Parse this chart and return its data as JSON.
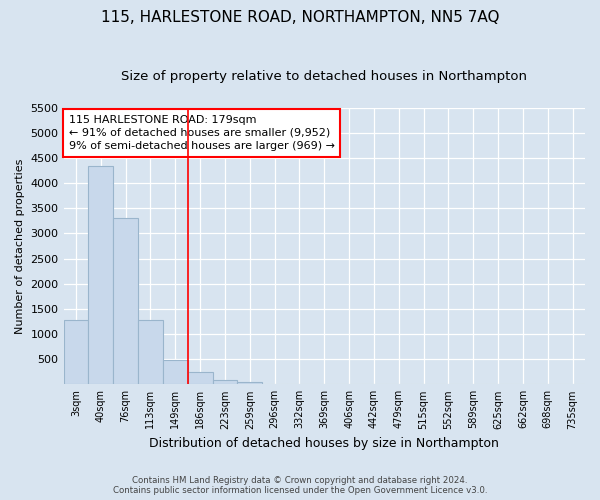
{
  "title": "115, HARLESTONE ROAD, NORTHAMPTON, NN5 7AQ",
  "subtitle": "Size of property relative to detached houses in Northampton",
  "xlabel": "Distribution of detached houses by size in Northampton",
  "ylabel": "Number of detached properties",
  "footer_line1": "Contains HM Land Registry data © Crown copyright and database right 2024.",
  "footer_line2": "Contains public sector information licensed under the Open Government Licence v3.0.",
  "annotation_line1": "115 HARLESTONE ROAD: 179sqm",
  "annotation_line2": "← 91% of detached houses are smaller (9,952)",
  "annotation_line3": "9% of semi-detached houses are larger (969) →",
  "bar_color": "#c8d8eb",
  "bar_edgecolor": "#9ab5cc",
  "categories": [
    "3sqm",
    "40sqm",
    "76sqm",
    "113sqm",
    "149sqm",
    "186sqm",
    "223sqm",
    "259sqm",
    "296sqm",
    "332sqm",
    "369sqm",
    "406sqm",
    "442sqm",
    "479sqm",
    "515sqm",
    "552sqm",
    "589sqm",
    "625sqm",
    "662sqm",
    "698sqm",
    "735sqm"
  ],
  "values": [
    1280,
    4350,
    3300,
    1280,
    480,
    240,
    80,
    40,
    10,
    0,
    0,
    0,
    0,
    0,
    0,
    0,
    0,
    0,
    0,
    0,
    0
  ],
  "redline_bin_index": 5,
  "ylim": [
    0,
    5500
  ],
  "yticks": [
    0,
    500,
    1000,
    1500,
    2000,
    2500,
    3000,
    3500,
    4000,
    4500,
    5000,
    5500
  ],
  "bg_color": "#d8e4f0",
  "plot_bg_color": "#d8e4f0",
  "title_fontsize": 11,
  "subtitle_fontsize": 9.5,
  "title_fontweight": "normal"
}
